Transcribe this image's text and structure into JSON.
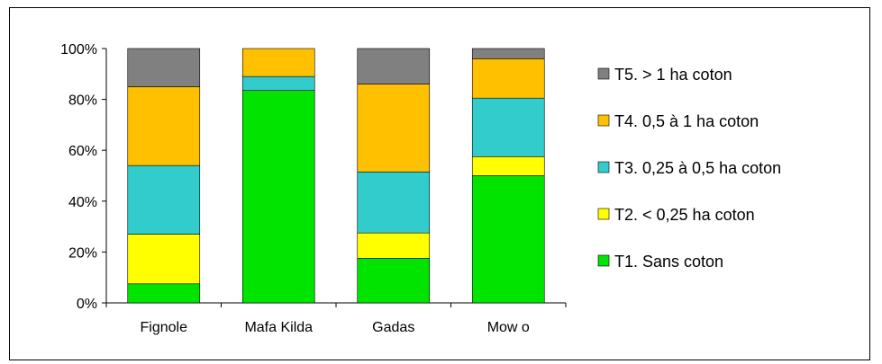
{
  "chart_data": {
    "type": "bar",
    "stacked": true,
    "percent": true,
    "categories": [
      "Fignole",
      "Mafa Kilda",
      "Gadas",
      "Mow o"
    ],
    "series": [
      {
        "name": "T1. Sans coton",
        "color": "#00e400",
        "values": [
          7.5,
          83.5,
          17.5,
          50
        ]
      },
      {
        "name": "T2. < 0,25 ha coton",
        "color": "#ffff00",
        "values": [
          19.5,
          0,
          10,
          7.5
        ]
      },
      {
        "name": "T3. 0,25 à 0,5 ha coton",
        "color": "#33cccc",
        "values": [
          27,
          5.5,
          24,
          23
        ]
      },
      {
        "name": "T4. 0,5 à 1 ha coton",
        "color": "#ffc000",
        "values": [
          31,
          11,
          34.5,
          15.5
        ]
      },
      {
        "name": "T5. > 1 ha coton",
        "color": "#808080",
        "values": [
          15,
          0,
          14,
          4
        ]
      }
    ],
    "yticks": [
      "0%",
      "20%",
      "40%",
      "60%",
      "80%",
      "100%"
    ],
    "ylim": [
      0,
      100
    ],
    "legend": "right",
    "grid": false
  }
}
